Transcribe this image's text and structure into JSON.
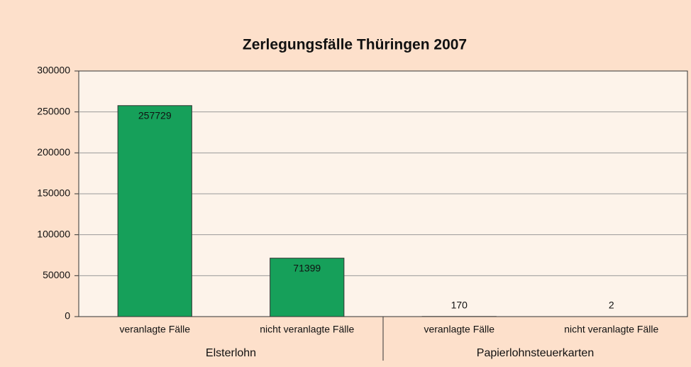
{
  "chart_data": {
    "type": "bar",
    "title": "Zerlegungsfälle Thüringen 2007",
    "groups": [
      {
        "name": "Elsterlohn",
        "categories": [
          "veranlagte Fälle",
          "nicht veranlagte Fälle"
        ],
        "values": [
          257729,
          71399
        ]
      },
      {
        "name": "Papierlohnsteuerkarten",
        "categories": [
          "veranlagte Fälle",
          "nicht veranlagte Fälle"
        ],
        "values": [
          170,
          2
        ]
      }
    ],
    "color": "#16a05a",
    "ylim": [
      0,
      300000
    ],
    "yticks": [
      0,
      50000,
      100000,
      150000,
      200000,
      250000,
      300000
    ],
    "grid": true
  }
}
